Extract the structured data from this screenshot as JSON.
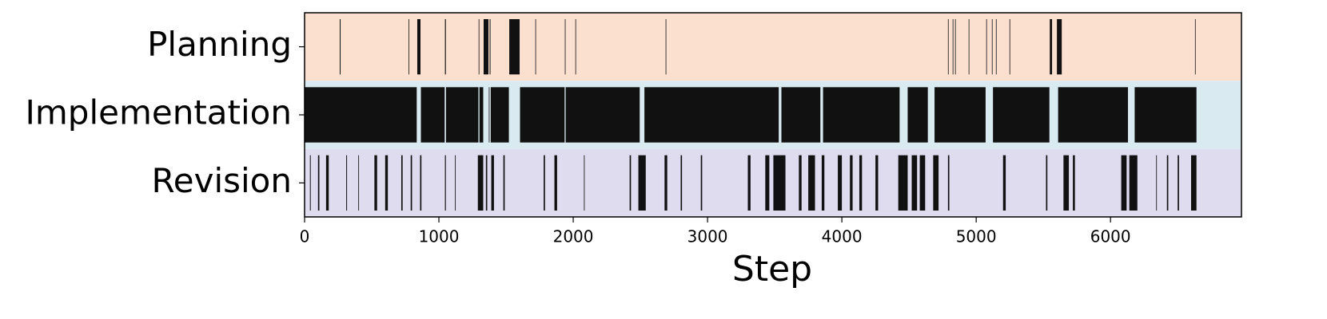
{
  "chart_data": {
    "type": "event",
    "xlabel": "Step",
    "xlim": [
      0,
      6975
    ],
    "xticks": [
      0,
      1000,
      2000,
      3000,
      4000,
      5000,
      6000
    ],
    "mark_color": "#111111",
    "series": [
      {
        "name": "Planning",
        "color": "#fbe0d0",
        "intervals": [
          [
            262,
            268
          ],
          [
            774,
            778
          ],
          [
            839,
            863
          ],
          [
            1045,
            1052
          ],
          [
            1296,
            1300
          ],
          [
            1333,
            1369
          ],
          [
            1378,
            1384
          ],
          [
            1524,
            1601
          ],
          [
            1718,
            1722
          ],
          [
            1938,
            1942
          ],
          [
            2016,
            2020
          ],
          [
            2688,
            2692
          ],
          [
            4790,
            4794
          ],
          [
            4825,
            4829
          ],
          [
            4843,
            4847
          ],
          [
            4944,
            4948
          ],
          [
            5075,
            5079
          ],
          [
            5117,
            5121
          ],
          [
            5147,
            5151
          ],
          [
            5248,
            5252
          ],
          [
            5548,
            5565
          ],
          [
            5601,
            5637
          ],
          [
            6629,
            6633
          ]
        ]
      },
      {
        "name": "Implementation",
        "color": "#d9eaf0",
        "intervals": [
          [
            0,
            835
          ],
          [
            866,
            1043
          ],
          [
            1053,
            1294
          ],
          [
            1302,
            1330
          ],
          [
            1372,
            1376
          ],
          [
            1386,
            1521
          ],
          [
            1604,
            1936
          ],
          [
            1944,
            2495
          ],
          [
            2530,
            3530
          ],
          [
            3550,
            3840
          ],
          [
            3860,
            4430
          ],
          [
            4490,
            4640
          ],
          [
            4690,
            5070
          ],
          [
            5125,
            5545
          ],
          [
            5610,
            6130
          ],
          [
            6180,
            6640
          ]
        ]
      },
      {
        "name": "Revision",
        "color": "#e0dcf0",
        "intervals": [
          [
            40,
            46
          ],
          [
            100,
            110
          ],
          [
            160,
            180
          ],
          [
            310,
            316
          ],
          [
            400,
            405
          ],
          [
            520,
            540
          ],
          [
            600,
            620
          ],
          [
            720,
            730
          ],
          [
            790,
            800
          ],
          [
            860,
            870
          ],
          [
            1045,
            1052
          ],
          [
            1120,
            1125
          ],
          [
            1290,
            1330
          ],
          [
            1350,
            1360
          ],
          [
            1390,
            1410
          ],
          [
            1480,
            1490
          ],
          [
            1780,
            1790
          ],
          [
            1860,
            1880
          ],
          [
            2080,
            2085
          ],
          [
            2420,
            2430
          ],
          [
            2485,
            2540
          ],
          [
            2680,
            2700
          ],
          [
            2800,
            2810
          ],
          [
            2950,
            2960
          ],
          [
            3300,
            3320
          ],
          [
            3430,
            3460
          ],
          [
            3490,
            3580
          ],
          [
            3680,
            3700
          ],
          [
            3750,
            3800
          ],
          [
            3850,
            3870
          ],
          [
            3970,
            4000
          ],
          [
            4060,
            4080
          ],
          [
            4130,
            4150
          ],
          [
            4250,
            4270
          ],
          [
            4420,
            4490
          ],
          [
            4520,
            4560
          ],
          [
            4580,
            4620
          ],
          [
            4680,
            4720
          ],
          [
            4790,
            4800
          ],
          [
            5200,
            5220
          ],
          [
            5520,
            5530
          ],
          [
            5650,
            5690
          ],
          [
            5720,
            5735
          ],
          [
            6080,
            6120
          ],
          [
            6140,
            6200
          ],
          [
            6340,
            6345
          ],
          [
            6420,
            6430
          ],
          [
            6500,
            6510
          ],
          [
            6600,
            6640
          ]
        ]
      }
    ]
  }
}
